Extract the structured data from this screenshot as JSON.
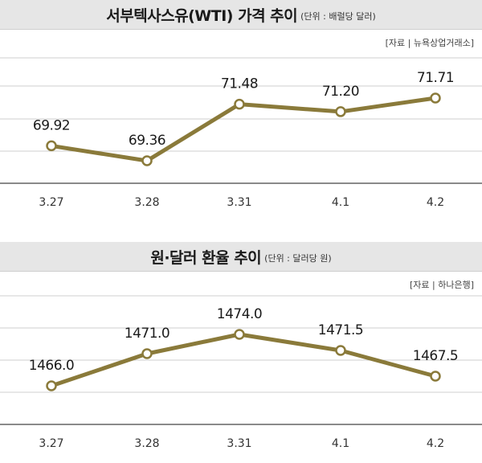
{
  "chart_data": [
    {
      "type": "line",
      "title": "서부텍사스유(WTI) 가격 추이",
      "unit": "(단위 : 배럴당 달러)",
      "source": "[자료 | 뉴욕상업거래소]",
      "categories": [
        "3.27",
        "3.28",
        "3.31",
        "4.1",
        "4.2"
      ],
      "values": [
        69.92,
        69.36,
        71.48,
        71.2,
        71.71
      ],
      "value_labels": [
        "69.92",
        "69.36",
        "71.48",
        "71.20",
        "71.71"
      ],
      "grid": true,
      "color": "#8a7a3a"
    },
    {
      "type": "line",
      "title": "원·달러 환율 추이",
      "unit": "(단위 : 달러당 원)",
      "source": "[자료 | 하나은행]",
      "categories": [
        "3.27",
        "3.28",
        "3.31",
        "4.1",
        "4.2"
      ],
      "values": [
        1466.0,
        1471.0,
        1474.0,
        1471.5,
        1467.5
      ],
      "value_labels": [
        "1466.0",
        "1471.0",
        "1474.0",
        "1471.5",
        "1467.5"
      ],
      "grid": true,
      "color": "#8a7a3a"
    }
  ]
}
